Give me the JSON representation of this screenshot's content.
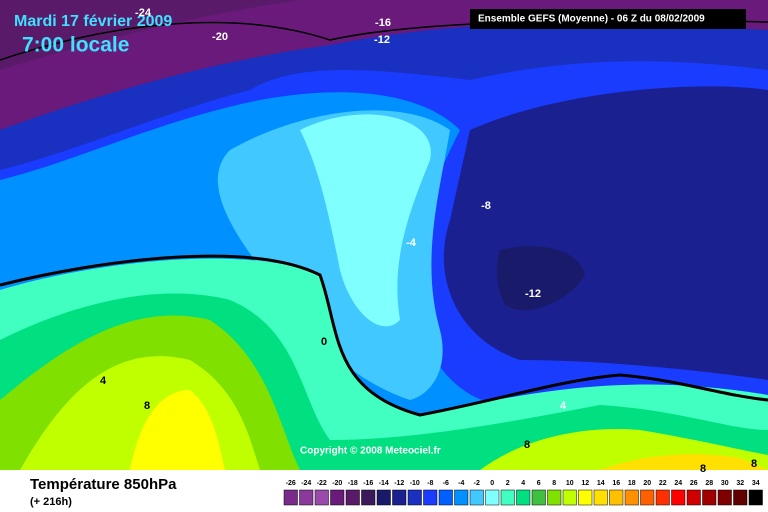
{
  "header": {
    "date": "Mardi 17 février 2009",
    "time": "7:00 locale",
    "run": "Ensemble GEFS (Moyenne)  - 06 Z du 08/02/2009"
  },
  "copyright": "Copyright © 2008 Meteociel.fr",
  "footer": {
    "title": "Température 850hPa",
    "subtitle": "(+ 216h)"
  },
  "contour_labels": [
    -24,
    -20,
    -16,
    -12,
    -8,
    -4,
    0,
    4,
    8,
    -12,
    4,
    8,
    8,
    8
  ],
  "colorbar": {
    "values": [
      -26,
      -24,
      -22,
      -20,
      -18,
      -16,
      -14,
      -12,
      -10,
      -8,
      -6,
      -4,
      -2,
      0,
      2,
      4,
      6,
      8,
      10,
      12,
      14,
      16,
      18,
      20,
      22,
      24,
      26,
      28,
      30,
      32,
      34
    ],
    "colors": [
      "#7a2a8a",
      "#8a3a9a",
      "#9a4aaa",
      "#6a1a7a",
      "#5a1a6a",
      "#3a1a5a",
      "#1a1a6a",
      "#1a2090",
      "#1a30c0",
      "#1a3cff",
      "#0060ff",
      "#0090ff",
      "#40c8ff",
      "#80ffff",
      "#40ffc0",
      "#00e080",
      "#40c040",
      "#80e000",
      "#c0ff00",
      "#ffff00",
      "#ffe000",
      "#ffc000",
      "#ff9000",
      "#ff6000",
      "#ff3000",
      "#ff0000",
      "#d00000",
      "#a00000",
      "#800000",
      "#600000",
      "#000000"
    ]
  }
}
